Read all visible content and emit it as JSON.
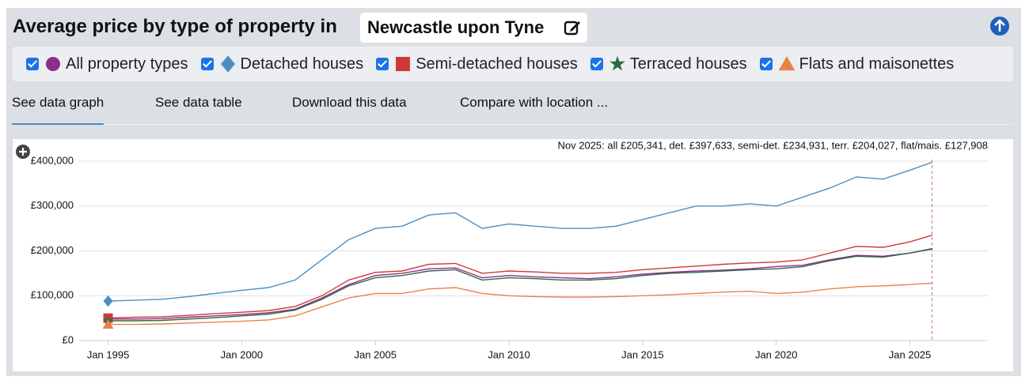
{
  "header": {
    "title": "Average price by type of property in",
    "location": "Newcastle upon Tyne"
  },
  "tabs": [
    "See data graph",
    "See data table",
    "Download this data",
    "Compare with location ..."
  ],
  "chart_data": {
    "type": "line",
    "annotation": "Nov 2025: all £205,341, det. £397,633, semi-det. £234,931, terr. £204,027, flat/mais. £127,908",
    "x": [
      "Jan 1995",
      "Jan 1996",
      "Jan 1997",
      "Jan 1998",
      "Jan 1999",
      "Jan 2000",
      "Jan 2001",
      "Jan 2002",
      "Jan 2003",
      "Jan 2004",
      "Jan 2005",
      "Jan 2006",
      "Jan 2007",
      "Jan 2008",
      "Jan 2009",
      "Jan 2010",
      "Jan 2011",
      "Jan 2012",
      "Jan 2013",
      "Jan 2014",
      "Jan 2015",
      "Jan 2016",
      "Jan 2017",
      "Jan 2018",
      "Jan 2019",
      "Jan 2020",
      "Jan 2021",
      "Jan 2022",
      "Jan 2023",
      "Jan 2024",
      "Jan 2025",
      "Nov 2025"
    ],
    "xlim": [
      "Dec 1993",
      "Dec 2027"
    ],
    "xticks": [
      "Jan 1995",
      "Jan 2000",
      "Jan 2005",
      "Jan 2010",
      "Jan 2015",
      "Jan 2020",
      "Jan 2025"
    ],
    "ylim": [
      0,
      400000
    ],
    "yticks": [
      {
        "value": 0,
        "label": "£0"
      },
      {
        "value": 100000,
        "label": "£100,000"
      },
      {
        "value": 200000,
        "label": "£200,000"
      },
      {
        "value": 300000,
        "label": "£300,000"
      },
      {
        "value": 400000,
        "label": "£400,000"
      }
    ],
    "grid": true,
    "series": [
      {
        "name": "All property types",
        "color": "#8e2c8e",
        "marker": "circle",
        "values": [
          48000,
          48000,
          49000,
          52000,
          55000,
          58000,
          62000,
          70000,
          95000,
          125000,
          145000,
          150000,
          160000,
          162000,
          140000,
          145000,
          142000,
          140000,
          138000,
          142000,
          148000,
          152000,
          155000,
          157000,
          160000,
          165000,
          168000,
          180000,
          190000,
          188000,
          195000,
          205341
        ]
      },
      {
        "name": "Detached houses",
        "color": "#4a8fc4",
        "marker": "diamond",
        "values": [
          88000,
          90000,
          92000,
          98000,
          105000,
          112000,
          118000,
          135000,
          180000,
          225000,
          250000,
          255000,
          280000,
          285000,
          250000,
          260000,
          255000,
          250000,
          250000,
          255000,
          270000,
          285000,
          300000,
          300000,
          305000,
          300000,
          320000,
          340000,
          365000,
          360000,
          380000,
          397633
        ]
      },
      {
        "name": "Semi-detached houses",
        "color": "#d0393a",
        "marker": "square",
        "values": [
          50000,
          52000,
          53000,
          56000,
          60000,
          63000,
          67000,
          76000,
          100000,
          135000,
          152000,
          155000,
          170000,
          172000,
          150000,
          155000,
          153000,
          150000,
          150000,
          152000,
          158000,
          162000,
          166000,
          170000,
          173000,
          175000,
          180000,
          195000,
          210000,
          208000,
          220000,
          234931
        ]
      },
      {
        "name": "Terraced houses",
        "color": "#2e6b3e",
        "marker": "star",
        "values": [
          44000,
          44000,
          45000,
          48000,
          51000,
          55000,
          59000,
          68000,
          92000,
          122000,
          140000,
          145000,
          155000,
          158000,
          135000,
          140000,
          138000,
          135000,
          135000,
          138000,
          145000,
          150000,
          152000,
          155000,
          158000,
          160000,
          165000,
          178000,
          188000,
          186000,
          195000,
          204027
        ]
      },
      {
        "name": "Flats and maisonettes",
        "color": "#e8834a",
        "marker": "triangle",
        "values": [
          36000,
          36000,
          37000,
          39000,
          41000,
          43000,
          46000,
          55000,
          75000,
          95000,
          105000,
          105000,
          115000,
          118000,
          105000,
          100000,
          98000,
          97000,
          97000,
          98000,
          100000,
          102000,
          105000,
          108000,
          110000,
          105000,
          108000,
          115000,
          120000,
          122000,
          125000,
          127908
        ]
      }
    ]
  }
}
